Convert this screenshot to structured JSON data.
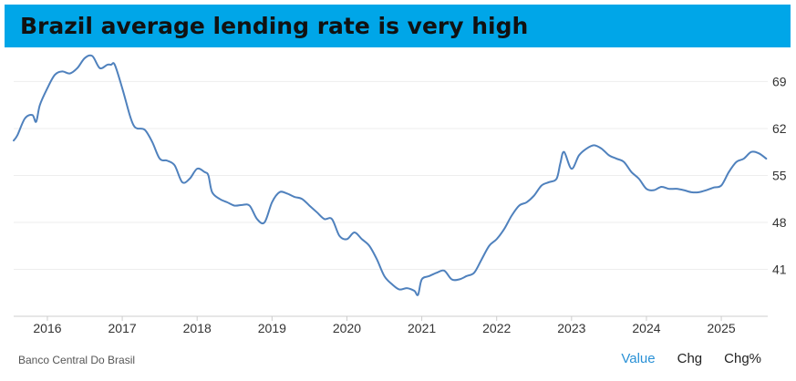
{
  "title": "Brazil average lending rate is very high",
  "source": "Banco Central Do Brasil",
  "tabs": [
    {
      "label": "Value",
      "active": true
    },
    {
      "label": "Chg",
      "active": false
    },
    {
      "label": "Chg%",
      "active": false
    }
  ],
  "colors": {
    "title_background": "#00a6e8",
    "line": "#4f81bd",
    "active_tab": "#2a91d6",
    "grid": "#eeeeee"
  },
  "chart_data": {
    "type": "line",
    "title": "Brazil average lending rate is very high",
    "xlabel": "",
    "ylabel": "",
    "x_ticks": [
      "2016",
      "2017",
      "2018",
      "2019",
      "2020",
      "2021",
      "2022",
      "2023",
      "2024",
      "2025"
    ],
    "y_ticks": [
      41,
      48,
      55,
      62,
      69
    ],
    "ylim": [
      34,
      73
    ],
    "xlim": [
      2015.55,
      2025.62
    ],
    "y_axis_side": "right",
    "grid": "horizontal",
    "legend": "none",
    "series": [
      {
        "x": [
          2015.55,
          2015.6,
          2015.7,
          2015.8,
          2015.85,
          2015.9,
          2016.0,
          2016.1,
          2016.2,
          2016.3,
          2016.4,
          2016.5,
          2016.6,
          2016.7,
          2016.8,
          2016.85,
          2016.9,
          2017.0,
          2017.1,
          2017.15,
          2017.2,
          2017.3,
          2017.4,
          2017.5,
          2017.6,
          2017.7,
          2017.8,
          2017.9,
          2018.0,
          2018.1,
          2018.15,
          2018.2,
          2018.3,
          2018.4,
          2018.5,
          2018.6,
          2018.7,
          2018.8,
          2018.9,
          2019.0,
          2019.1,
          2019.2,
          2019.3,
          2019.4,
          2019.5,
          2019.6,
          2019.7,
          2019.8,
          2019.9,
          2020.0,
          2020.1,
          2020.2,
          2020.3,
          2020.4,
          2020.5,
          2020.6,
          2020.7,
          2020.8,
          2020.9,
          2020.95,
          2021.0,
          2021.1,
          2021.2,
          2021.3,
          2021.4,
          2021.5,
          2021.6,
          2021.7,
          2021.8,
          2021.9,
          2022.0,
          2022.1,
          2022.2,
          2022.3,
          2022.4,
          2022.5,
          2022.6,
          2022.7,
          2022.8,
          2022.85,
          2022.9,
          2023.0,
          2023.1,
          2023.2,
          2023.3,
          2023.4,
          2023.5,
          2023.6,
          2023.7,
          2023.8,
          2023.9,
          2024.0,
          2024.1,
          2024.2,
          2024.3,
          2024.4,
          2024.5,
          2024.6,
          2024.7,
          2024.8,
          2024.9,
          2025.0,
          2025.1,
          2025.2,
          2025.3,
          2025.4,
          2025.5,
          2025.6
        ],
        "values": [
          60.2,
          61,
          63.5,
          64,
          63,
          65.5,
          68,
          70,
          70.5,
          70.2,
          71,
          72.5,
          72.8,
          71,
          71.5,
          71.5,
          71.5,
          68,
          64,
          62.5,
          62,
          61.8,
          60,
          57.5,
          57.2,
          56.5,
          54,
          54.5,
          56,
          55.5,
          55,
          52.5,
          51.5,
          51,
          50.5,
          50.6,
          50.5,
          48.5,
          48,
          51,
          52.5,
          52.3,
          51.8,
          51.5,
          50.5,
          49.5,
          48.5,
          48.5,
          46,
          45.5,
          46.5,
          45.5,
          44.5,
          42.5,
          40,
          38.8,
          38,
          38.2,
          37.8,
          37.2,
          39.5,
          40,
          40.5,
          40.8,
          39.5,
          39.5,
          40,
          40.5,
          42.5,
          44.5,
          45.5,
          47,
          49,
          50.5,
          51,
          52,
          53.5,
          54,
          54.5,
          56.8,
          58.5,
          56,
          58,
          59,
          59.5,
          59,
          58,
          57.5,
          57,
          55.5,
          54.5,
          53,
          52.8,
          53.3,
          53,
          53,
          52.8,
          52.5,
          52.5,
          52.8,
          53.2,
          53.5,
          55.5,
          57,
          57.5,
          58.5,
          58.3,
          57.5
        ]
      }
    ]
  }
}
